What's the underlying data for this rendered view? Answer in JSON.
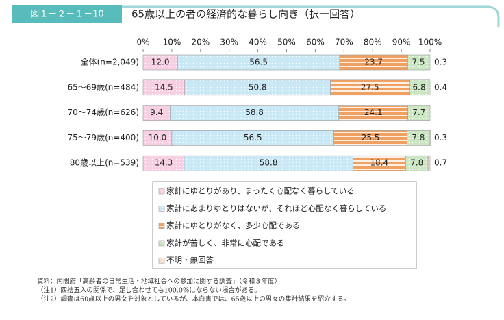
{
  "chart_data": {
    "type": "stacked-barh",
    "figure_label": "図１－２－１－10",
    "title": "65歳以上の者の経済的な暮らし向き（択一回答）",
    "categories": [
      "全体(n=2,049)",
      "65～69歳(n=484)",
      "70～74歳(n=626)",
      "75～79歳(n=400)",
      "80歳以上(n=539)"
    ],
    "xlim": [
      0,
      100
    ],
    "xticks": [
      {
        "value": 0,
        "label": "0%"
      },
      {
        "value": 10,
        "label": "10%"
      },
      {
        "value": 20,
        "label": "20%"
      },
      {
        "value": 30,
        "label": "30%"
      },
      {
        "value": 40,
        "label": "40%"
      },
      {
        "value": 50,
        "label": "50%"
      },
      {
        "value": 60,
        "label": "60%"
      },
      {
        "value": 70,
        "label": "70%"
      },
      {
        "value": 80,
        "label": "80%"
      },
      {
        "value": 90,
        "label": "90%"
      },
      {
        "value": 100,
        "label": "100%"
      }
    ],
    "series": [
      {
        "name": "家計にゆとりがあり、まったく心配なく暮らしている",
        "color": "#f8cfe2",
        "pattern": "dots",
        "values": [
          12.0,
          14.5,
          9.4,
          10.0,
          14.3
        ],
        "value_labels": [
          "12.0",
          "14.5",
          "9.4",
          "10.0",
          "14.3"
        ]
      },
      {
        "name": "家計にあまりゆとりはないが、それほど心配なく暮らしている",
        "color": "#c9e8f6",
        "pattern": "dots",
        "values": [
          56.5,
          50.8,
          58.8,
          56.5,
          58.8
        ],
        "value_labels": [
          "56.5",
          "50.8",
          "58.8",
          "56.5",
          "58.8"
        ]
      },
      {
        "name": "家計にゆとりがなく、多少心配である",
        "color": "#f0a060",
        "pattern": "stripes",
        "values": [
          23.7,
          27.5,
          24.1,
          25.5,
          18.4
        ],
        "value_labels": [
          "23.7",
          "27.5",
          "24.1",
          "25.5",
          "18.4"
        ]
      },
      {
        "name": "家計が苦しく、非常に心配である",
        "color": "#cbe6c2",
        "pattern": "dots",
        "values": [
          7.5,
          6.8,
          7.7,
          7.8,
          7.8
        ],
        "value_labels": [
          "7.5",
          "6.8",
          "7.7",
          "7.8",
          "7.8"
        ]
      },
      {
        "name": "不明・無回答",
        "color": "#fbe0cc",
        "pattern": "dots",
        "values": [
          0.3,
          0.4,
          null,
          0.3,
          0.7
        ],
        "value_labels": [
          "0.3",
          "0.4",
          null,
          "0.3",
          "0.7"
        ]
      }
    ],
    "notes": [
      "資料：内閣府「高齢者の日常生活・地域社会への参加に関する調査」（令和３年度）",
      "（注1）四捨五入の関係で、足し合わせても100.0％にならない場合がある。",
      "（注2）調査は60歳以上の男女を対象としているが、本白書では、65歳以上の男女の集計結果を紹介する。"
    ]
  }
}
